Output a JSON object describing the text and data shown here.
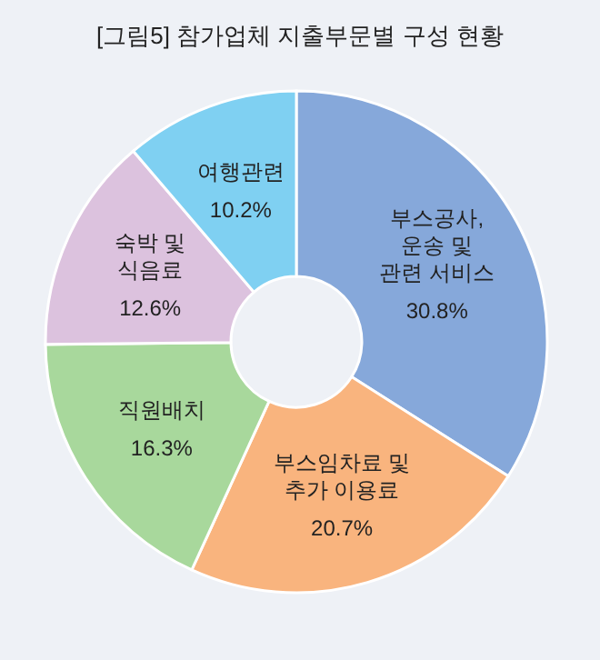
{
  "chart_data": {
    "type": "donut",
    "title": "[그림5] 참가업체 지출부문별 구성 현황",
    "categories": [
      "부스공사,\n운송 및\n관련 서비스",
      "부스임차료 및\n추가 이용료",
      "직원배치",
      "숙박 및\n식음료",
      "여행관련"
    ],
    "values": [
      30.8,
      20.7,
      16.3,
      12.6,
      10.2
    ],
    "value_labels": [
      "30.8%",
      "20.7%",
      "16.3%",
      "12.6%",
      "10.2%"
    ],
    "colors": [
      "#86a8da",
      "#f9b47e",
      "#a8d89c",
      "#dcc2de",
      "#7fd0f2"
    ],
    "legend": false
  }
}
